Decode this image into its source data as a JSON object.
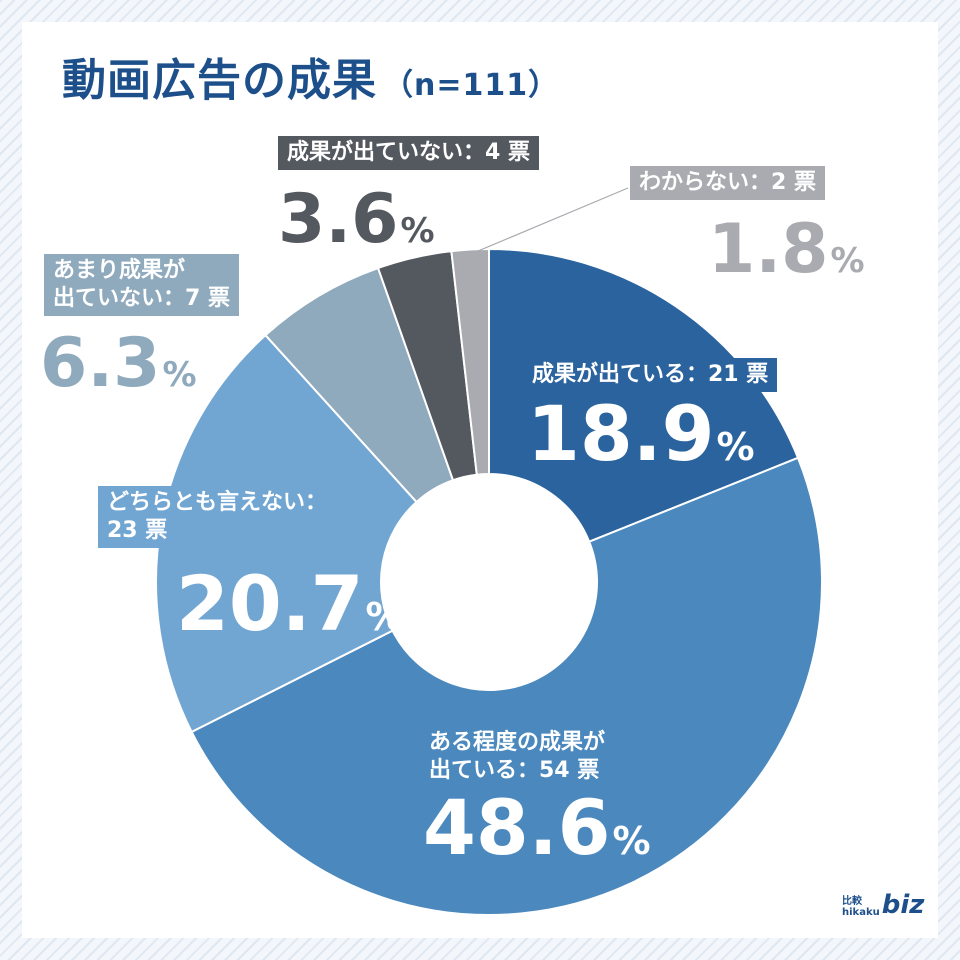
{
  "title": "動画広告の成果",
  "n_label": "（n=111）",
  "colors": {
    "s1": "#2b639e",
    "s2": "#4a88bd",
    "s3": "#72a6d2",
    "s4": "#8fa9bd",
    "s5": "#54585f",
    "s6": "#a9abb0"
  },
  "labels": {
    "s1": "成果が出ている：21 票",
    "s2_line1": "ある程度の成果が",
    "s2_line2": "出ている：54 票",
    "s3_line1": "どちらとも言えない：",
    "s3_line2": "23 票",
    "s4_line1": "あまり成果が",
    "s4_line2": "出ていない：7 票",
    "s5": "成果が出ていない：4 票",
    "s6": "わからない：2 票"
  },
  "percents": {
    "s1": "18.9",
    "s2": "48.6",
    "s3": "20.7",
    "s4": "6.3",
    "s5": "3.6",
    "s6": "1.8",
    "unit": "%"
  },
  "logo": {
    "small_top": "比較",
    "small_bottom": "hikaku",
    "main": "biz"
  },
  "chart_data": {
    "type": "pie",
    "title": "動画広告の成果",
    "subtitle": "（n=111）",
    "categories": [
      "成果が出ている",
      "ある程度の成果が出ている",
      "どちらとも言えない",
      "あまり成果が出ていない",
      "成果が出ていない",
      "わからない"
    ],
    "votes": [
      21,
      54,
      23,
      7,
      4,
      2
    ],
    "values": [
      18.9,
      48.6,
      20.7,
      6.3,
      3.6,
      1.8
    ],
    "donut": true
  }
}
